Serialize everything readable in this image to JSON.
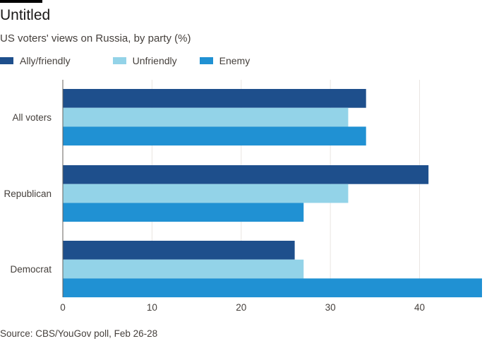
{
  "header": {
    "title": "Untitled",
    "subtitle": "US voters' views on Russia, by party (%)"
  },
  "footer": {
    "source": "Source: CBS/YouGov poll, Feb 26-28"
  },
  "colors": {
    "ally": "#1e4f8c",
    "unfriendly": "#93d3e8",
    "enemy": "#2091d3",
    "grid": "#e9e5e1",
    "text": "#45403c"
  },
  "chart_data": {
    "type": "bar",
    "orientation": "horizontal",
    "categories": [
      "All voters",
      "Republican",
      "Democrat"
    ],
    "series": [
      {
        "name": "Ally/friendly",
        "color": "#1e4f8c",
        "values": [
          34,
          41,
          26
        ]
      },
      {
        "name": "Unfriendly",
        "color": "#93d3e8",
        "values": [
          32,
          32,
          27
        ]
      },
      {
        "name": "Enemy",
        "color": "#2091d3",
        "values": [
          34,
          27,
          47
        ]
      }
    ],
    "xticks": [
      0,
      10,
      20,
      30,
      40
    ],
    "xlim": [
      0,
      47
    ],
    "grid": true,
    "legend_position": "top-left"
  }
}
